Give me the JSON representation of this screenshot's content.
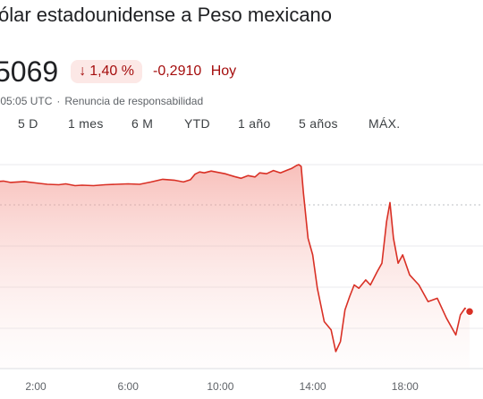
{
  "header": {
    "title": "ólar estadounidense a Peso mexicano",
    "price": "5069",
    "change_percent": "1,40 %",
    "change_value": "-0,2910",
    "change_period": "Hoy",
    "timestamp": ":05:05 UTC",
    "disclaimer": "Renuncia de responsabilidad"
  },
  "tabs": [
    {
      "label": "5 D"
    },
    {
      "label": "1 mes"
    },
    {
      "label": "6 M"
    },
    {
      "label": "YTD"
    },
    {
      "label": "1 año"
    },
    {
      "label": "5 años"
    },
    {
      "label": "MÁX."
    }
  ],
  "colors": {
    "negative": "#d93025",
    "badge_bg": "#fce8e6",
    "badge_text": "#a50e0e",
    "grid": "#e8eaed"
  },
  "chart_data": {
    "type": "line",
    "x_ticks": [
      "2:00",
      "6:00",
      "10:00",
      "14:00",
      "18:00"
    ],
    "x_tick_hours": [
      2,
      6,
      10,
      14,
      18
    ],
    "reference": "previous_close",
    "series": [
      {
        "points": [
          [
            0.0,
            50
          ],
          [
            0.3,
            51
          ],
          [
            0.6,
            52
          ],
          [
            0.9,
            49
          ],
          [
            1.2,
            50
          ],
          [
            1.5,
            51
          ],
          [
            2.0,
            48
          ],
          [
            2.5,
            45
          ],
          [
            3.0,
            44
          ],
          [
            3.3,
            46
          ],
          [
            3.7,
            42
          ],
          [
            4.0,
            43
          ],
          [
            4.5,
            42
          ],
          [
            5.0,
            44
          ],
          [
            5.5,
            45
          ],
          [
            6.0,
            46
          ],
          [
            6.5,
            45
          ],
          [
            7.0,
            50
          ],
          [
            7.5,
            56
          ],
          [
            8.0,
            54
          ],
          [
            8.4,
            50
          ],
          [
            8.7,
            55
          ],
          [
            8.9,
            67
          ],
          [
            9.1,
            72
          ],
          [
            9.3,
            70
          ],
          [
            9.6,
            74
          ],
          [
            9.9,
            71
          ],
          [
            10.2,
            68
          ],
          [
            10.6,
            62
          ],
          [
            10.9,
            58
          ],
          [
            11.2,
            64
          ],
          [
            11.5,
            61
          ],
          [
            11.7,
            70
          ],
          [
            12.0,
            68
          ],
          [
            12.3,
            75
          ],
          [
            12.6,
            70
          ],
          [
            12.9,
            76
          ],
          [
            13.1,
            80
          ],
          [
            13.3,
            86
          ],
          [
            13.4,
            88
          ],
          [
            13.5,
            84
          ],
          [
            13.6,
            25
          ],
          [
            13.8,
            -20
          ],
          [
            14.0,
            -30
          ],
          [
            14.2,
            -50
          ],
          [
            14.5,
            -70
          ],
          [
            14.8,
            -75
          ],
          [
            15.0,
            -88
          ],
          [
            15.2,
            -82
          ],
          [
            15.4,
            -63
          ],
          [
            15.6,
            -55
          ],
          [
            15.8,
            -48
          ],
          [
            16.0,
            -50
          ],
          [
            16.3,
            -45
          ],
          [
            16.5,
            -48
          ],
          [
            16.8,
            -40
          ],
          [
            17.0,
            -35
          ],
          [
            17.2,
            -10
          ],
          [
            17.35,
            5
          ],
          [
            17.5,
            -20
          ],
          [
            17.7,
            -35
          ],
          [
            17.9,
            -30
          ],
          [
            18.2,
            -42
          ],
          [
            18.6,
            -48
          ],
          [
            19.0,
            -58
          ],
          [
            19.4,
            -56
          ],
          [
            19.8,
            -68
          ],
          [
            20.2,
            -78
          ],
          [
            20.4,
            -66
          ],
          [
            20.6,
            -62
          ],
          [
            20.8,
            -64
          ]
        ]
      }
    ],
    "y_range": [
      -100,
      100
    ],
    "grid": true
  }
}
